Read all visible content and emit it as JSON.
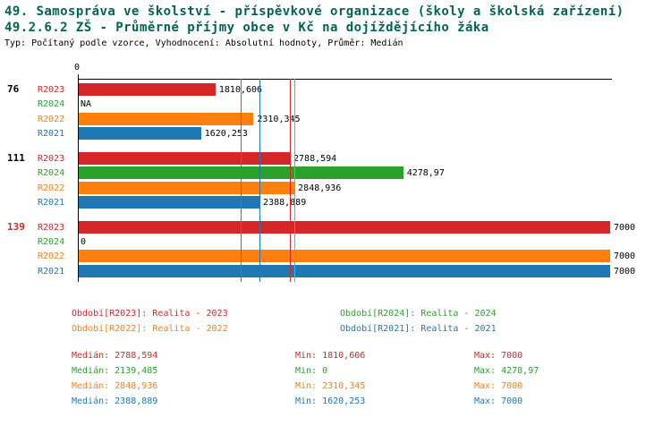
{
  "header": {
    "title1": "49. Samospráva ve školství - příspěvkové organizace (školy a školská zařízení)",
    "title2": "49.2.6.2 ZŠ - Průměrné příjmy obce v Kč na dojíždějícího žáka",
    "meta": "Typ: Počítaný podle vzorce, Vyhodnocení: Absolutní hodnoty, Průměr: Medián"
  },
  "colors": {
    "title": "#006455",
    "R2023": "#d62728",
    "R2024": "#2ca02c",
    "R2022": "#ff7f0e",
    "R2021": "#1f77b4",
    "axis": "#000000"
  },
  "chart_data": {
    "type": "bar",
    "orientation": "horizontal",
    "xlim": [
      0,
      7000
    ],
    "x_zero_label": "0",
    "series_order": [
      "R2023",
      "R2024",
      "R2022",
      "R2021"
    ],
    "groups": [
      {
        "label": "76",
        "label_color": "#000000",
        "bars": [
          {
            "series": "R2023",
            "value": 1810.606,
            "value_label": "1810,606"
          },
          {
            "series": "R2024",
            "value": null,
            "value_label": "NA"
          },
          {
            "series": "R2022",
            "value": 2310.345,
            "value_label": "2310,345"
          },
          {
            "series": "R2021",
            "value": 1620.253,
            "value_label": "1620,253"
          }
        ]
      },
      {
        "label": "111",
        "label_color": "#000000",
        "bars": [
          {
            "series": "R2023",
            "value": 2788.594,
            "value_label": "2788,594"
          },
          {
            "series": "R2024",
            "value": 4278.97,
            "value_label": "4278,97"
          },
          {
            "series": "R2022",
            "value": 2848.936,
            "value_label": "2848,936"
          },
          {
            "series": "R2021",
            "value": 2388.889,
            "value_label": "2388,889"
          }
        ]
      },
      {
        "label": "139",
        "label_color": "#d62728",
        "bars": [
          {
            "series": "R2023",
            "value": 7000,
            "value_label": "7000"
          },
          {
            "series": "R2024",
            "value": 0,
            "value_label": "0"
          },
          {
            "series": "R2022",
            "value": 7000,
            "value_label": "7000"
          },
          {
            "series": "R2021",
            "value": 7000,
            "value_label": "7000"
          }
        ]
      }
    ],
    "medians": {
      "R2023": 2788.594,
      "R2024": 2139.485,
      "R2022": 2848.936,
      "R2021": 2388.889
    },
    "stats_numeric": {
      "R2023": {
        "median": 2788.594,
        "min": 1810.606,
        "max": 7000
      },
      "R2024": {
        "median": 2139.485,
        "min": 0,
        "max": 4278.97
      },
      "R2022": {
        "median": 2848.936,
        "min": 2310.345,
        "max": 7000
      },
      "R2021": {
        "median": 2388.889,
        "min": 1620.253,
        "max": 7000
      }
    }
  },
  "legend": [
    {
      "series": "R2023",
      "text": "Období[R2023]: Realita - 2023"
    },
    {
      "series": "R2024",
      "text": "Období[R2024]: Realita - 2024"
    },
    {
      "series": "R2022",
      "text": "Období[R2022]: Realita - 2022"
    },
    {
      "series": "R2021",
      "text": "Období[R2021]: Realita - 2021"
    }
  ],
  "stats": [
    {
      "series": "R2023",
      "median": "Medián: 2788,594",
      "min": "Min: 1810,606",
      "max": "Max: 7000"
    },
    {
      "series": "R2024",
      "median": "Medián: 2139,485",
      "min": "Min: 0",
      "max": "Max: 4278,97"
    },
    {
      "series": "R2022",
      "median": "Medián: 2848,936",
      "min": "Min: 2310,345",
      "max": "Max: 7000"
    },
    {
      "series": "R2021",
      "median": "Medián: 2388,889",
      "min": "Min: 1620,253",
      "max": "Max: 7000"
    }
  ]
}
